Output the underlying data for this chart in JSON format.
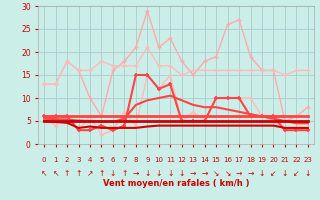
{
  "title": "Vent moyen/en rafales ( km/h )",
  "bg_color": "#cceee8",
  "grid_color": "#aacccc",
  "x_values": [
    0,
    1,
    2,
    3,
    4,
    5,
    6,
    7,
    8,
    9,
    10,
    11,
    12,
    13,
    14,
    15,
    16,
    17,
    18,
    19,
    20,
    21,
    22,
    23
  ],
  "ylim": [
    0,
    30
  ],
  "yticks": [
    0,
    5,
    10,
    15,
    20,
    25,
    30
  ],
  "series": [
    {
      "color": "#ffaaaa",
      "lw": 1.0,
      "marker": "+",
      "ms": 3,
      "mew": 1.0,
      "values": [
        13,
        13,
        18,
        16,
        10,
        6,
        16,
        18,
        21,
        29,
        21,
        23,
        18,
        15,
        18,
        19,
        26,
        27,
        19,
        16,
        16,
        5,
        6,
        8
      ]
    },
    {
      "color": "#ffbbbb",
      "lw": 1.0,
      "marker": "+",
      "ms": 3,
      "mew": 1.0,
      "values": [
        13,
        13,
        18,
        16,
        16,
        18,
        17,
        17,
        17,
        21,
        17,
        17,
        15,
        16,
        16,
        16,
        16,
        16,
        16,
        16,
        16,
        15,
        16,
        16
      ]
    },
    {
      "color": "#ffbbbb",
      "lw": 1.0,
      "marker": "+",
      "ms": 3,
      "mew": 1.0,
      "values": [
        6,
        4,
        6,
        3,
        6,
        2,
        3,
        7,
        4,
        15,
        12,
        15,
        5,
        7,
        5,
        10,
        10,
        10,
        10,
        6,
        5,
        3,
        3,
        3
      ]
    },
    {
      "color": "#ff4444",
      "lw": 1.5,
      "marker": "+",
      "ms": 3,
      "mew": 1.2,
      "values": [
        6,
        6,
        6,
        3,
        3,
        4,
        3,
        4,
        15,
        15,
        12,
        13,
        5,
        5,
        5,
        10,
        10,
        10,
        6,
        6,
        6,
        3,
        3,
        3
      ]
    },
    {
      "color": "#ff9999",
      "lw": 1.0,
      "marker": null,
      "ms": 0,
      "mew": 0,
      "values": [
        6,
        6,
        6,
        6,
        6,
        6,
        6,
        6,
        6,
        6,
        6,
        6,
        6,
        6,
        6,
        6,
        6,
        6,
        6,
        6,
        6,
        6,
        6,
        6
      ]
    },
    {
      "color": "#ff4444",
      "lw": 2.0,
      "marker": null,
      "ms": 0,
      "mew": 0,
      "values": [
        6,
        6,
        6,
        6,
        6,
        6,
        6,
        6,
        6,
        6,
        6,
        6,
        6,
        6,
        6,
        6,
        6,
        6,
        6,
        6,
        6,
        6,
        6,
        6
      ]
    },
    {
      "color": "#ff4444",
      "lw": 1.5,
      "marker": null,
      "ms": 0,
      "mew": 0,
      "values": [
        5.5,
        5.4,
        5.3,
        5.1,
        5.0,
        4.9,
        4.8,
        5.5,
        8.5,
        9.5,
        10,
        10.5,
        9.5,
        8.5,
        8,
        8,
        7.5,
        7,
        6.5,
        6,
        5.5,
        5,
        4.5,
        4.5
      ]
    },
    {
      "color": "#cc0000",
      "lw": 1.5,
      "marker": null,
      "ms": 0,
      "mew": 0,
      "values": [
        5,
        4.8,
        4.6,
        3.5,
        3.8,
        3.5,
        3.5,
        3.5,
        3.5,
        3.8,
        4,
        4,
        4,
        4,
        4,
        4,
        4,
        4,
        4,
        4,
        4,
        3.5,
        3.5,
        3.5
      ]
    },
    {
      "color": "#cc0000",
      "lw": 2.0,
      "marker": null,
      "ms": 0,
      "mew": 0,
      "values": [
        5,
        5,
        5,
        5,
        5,
        5,
        5,
        5,
        5,
        5,
        5,
        5,
        5,
        5,
        5,
        5,
        5,
        5,
        5,
        5,
        5,
        5,
        5,
        5
      ]
    }
  ],
  "wind_arrows": [
    "↖",
    "↖",
    "↑",
    "↑",
    "↗",
    "↑",
    "↓",
    "↑",
    "→",
    "↓",
    "↓",
    "↓",
    "↓",
    "→",
    "→",
    "↘",
    "↘",
    "→",
    "→",
    "↓",
    "↙",
    "↓",
    "↙",
    "↓"
  ],
  "arrow_fontsize": 5.5
}
